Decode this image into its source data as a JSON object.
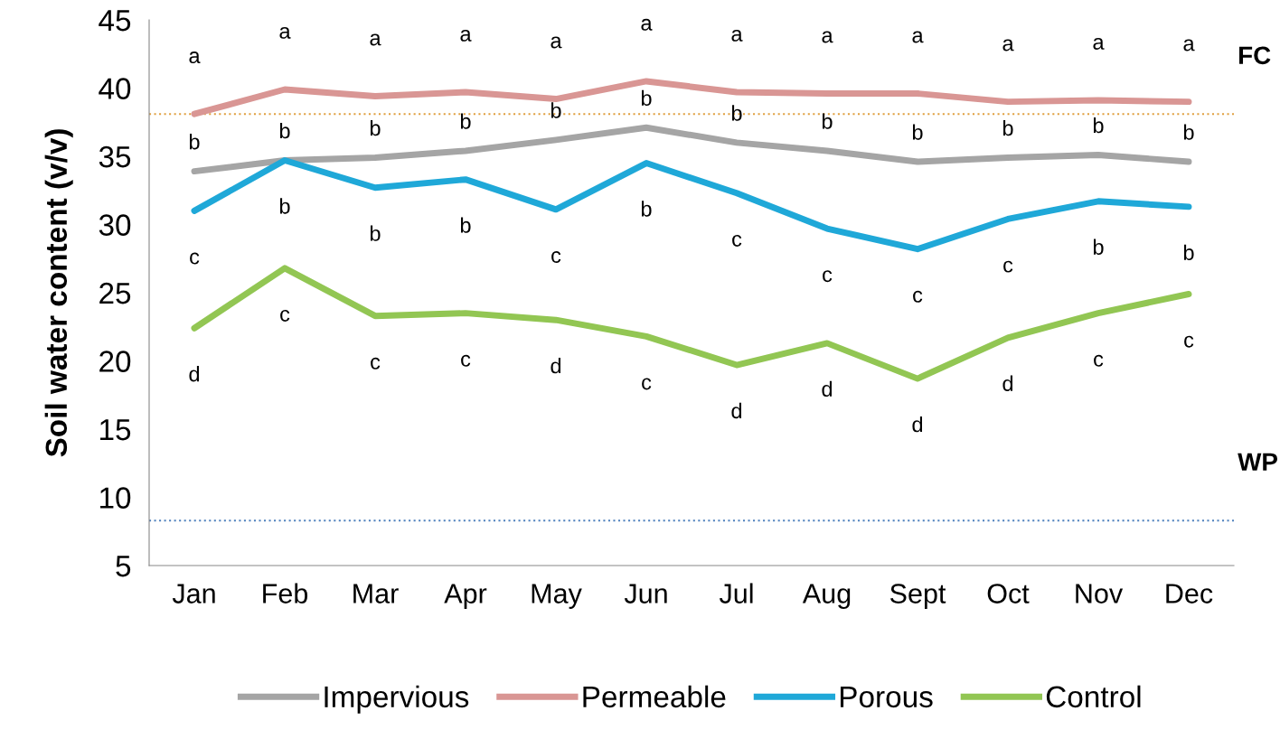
{
  "chart_data": {
    "type": "line",
    "ylabel": "Soil water content (v/v)",
    "categories": [
      "Jan",
      "Feb",
      "Mar",
      "Apr",
      "May",
      "Jun",
      "Jul",
      "Aug",
      "Sept",
      "Oct",
      "Nov",
      "Dec"
    ],
    "series": [
      {
        "name": "Impervious",
        "color": "#a5a5a5",
        "values": [
          33.9,
          34.7,
          34.9,
          35.4,
          36.2,
          37.1,
          36.0,
          35.4,
          34.6,
          34.9,
          35.1,
          34.6
        ],
        "value_labels": [
          "b",
          "b",
          "b",
          "b",
          "b",
          "b",
          "b",
          "b",
          "b",
          "b",
          "b",
          "b"
        ]
      },
      {
        "name": "Permeable",
        "color": "#d99694",
        "values": [
          38.1,
          39.9,
          39.4,
          39.7,
          39.2,
          40.5,
          39.7,
          39.6,
          39.6,
          39.0,
          39.1,
          39.0
        ],
        "value_labels": [
          "a",
          "a",
          "a",
          "a",
          "a",
          "a",
          "a",
          "a",
          "a",
          "a",
          "a",
          "a"
        ]
      },
      {
        "name": "Porous",
        "color": "#1fa8d8",
        "values": [
          31.0,
          34.7,
          32.7,
          33.3,
          31.1,
          34.5,
          32.3,
          29.7,
          28.2,
          30.4,
          31.7,
          31.3
        ],
        "value_labels": [
          "c",
          "b",
          "b",
          "b",
          "c",
          "b",
          "c",
          "c",
          "c",
          "c",
          "b",
          "b"
        ]
      },
      {
        "name": "Control",
        "color": "#92c653",
        "values": [
          22.4,
          26.8,
          23.3,
          23.5,
          23.0,
          21.8,
          19.7,
          21.3,
          18.7,
          21.7,
          23.5,
          24.9
        ],
        "value_labels": [
          "d",
          "c",
          "c",
          "c",
          "d",
          "c",
          "d",
          "d",
          "d",
          "d",
          "c",
          "c"
        ]
      }
    ],
    "ylim": [
      5,
      45
    ],
    "yticks": [
      5,
      10,
      15,
      20,
      25,
      30,
      35,
      40,
      45
    ],
    "grid": false,
    "legend": "bottom",
    "marker": "none",
    "line_style": "solid",
    "ref_lines": [
      {
        "axis": "y",
        "value": 38.1,
        "label": "FC",
        "color": "#e0a040",
        "line_style": "dotted"
      },
      {
        "axis": "y",
        "value": 8.3,
        "label": "WP",
        "color": "#4f81bd",
        "line_style": "dotted"
      }
    ]
  }
}
